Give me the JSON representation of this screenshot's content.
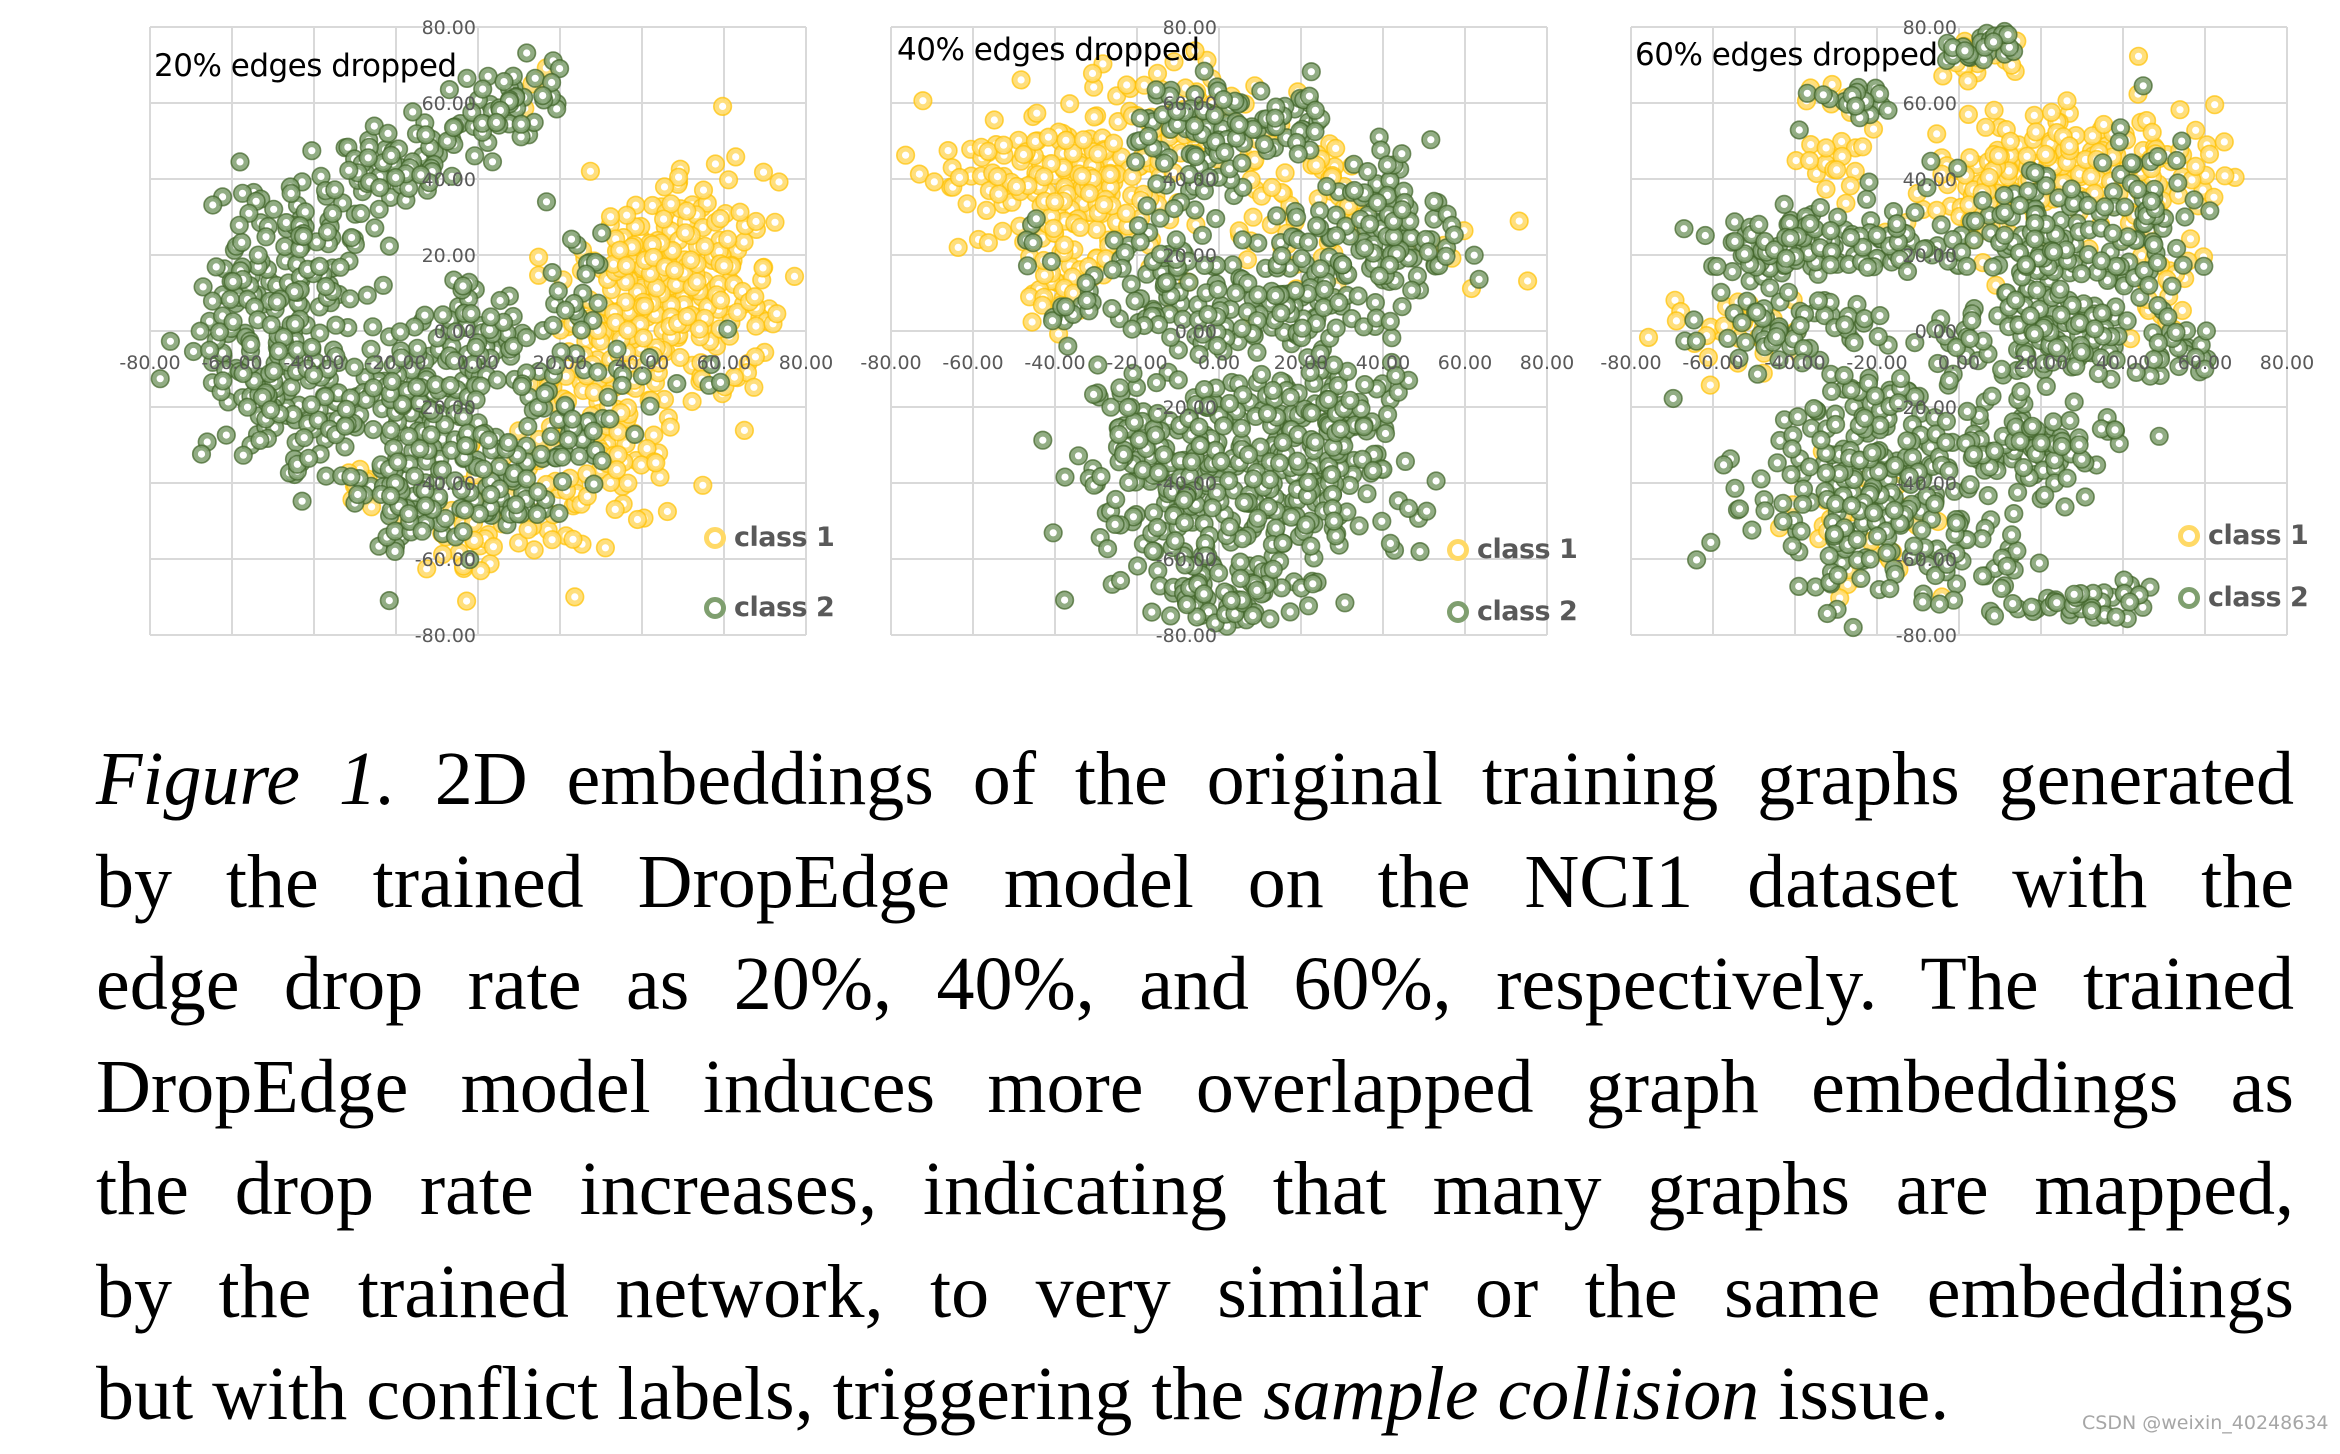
{
  "chart_data": [
    {
      "type": "scatter",
      "title": "20% edges dropped",
      "xlabel": "",
      "ylabel": "",
      "xlim": [
        -80,
        80
      ],
      "ylim": [
        -80,
        80
      ],
      "x_ticks": [
        "-80.00",
        "-60.00",
        "-40.00",
        "-20.00",
        "0.00",
        "20.00",
        "40.00",
        "60.00",
        "80.00"
      ],
      "y_ticks": [
        "80.00",
        "60.00",
        "40.00",
        "20.00",
        "0.00",
        "-20.00",
        "-40.00",
        "-60.00",
        "-80.00"
      ],
      "grid": true,
      "legend_position": "lower right",
      "legend": [
        "class 1",
        "class 2"
      ],
      "series": [
        {
          "name": "class 1",
          "color": "#FFC000",
          "clusters": [
            {
              "cx": 48,
              "cy": 12,
              "sx": 13,
              "sy": 13,
              "n": 260
            },
            {
              "cx": 30,
              "cy": -20,
              "sx": 10,
              "sy": 14,
              "n": 120
            },
            {
              "cx": 15,
              "cy": -45,
              "sx": 8,
              "sy": 8,
              "n": 50
            },
            {
              "cx": -3,
              "cy": -58,
              "sx": 4,
              "sy": 5,
              "n": 18
            },
            {
              "cx": -25,
              "cy": -40,
              "sx": 4,
              "sy": 4,
              "n": 10
            },
            {
              "cx": 12,
              "cy": 63,
              "sx": 3,
              "sy": 3,
              "n": 4
            }
          ]
        },
        {
          "name": "class 2",
          "color": "#3F6326",
          "clusters": [
            {
              "cx": 10,
              "cy": 60,
              "sx": 8,
              "sy": 5,
              "n": 45,
              "rot": 35
            },
            {
              "cx": -20,
              "cy": 45,
              "sx": 12,
              "sy": 6,
              "n": 70,
              "rot": 30
            },
            {
              "cx": -45,
              "cy": 25,
              "sx": 9,
              "sy": 9,
              "n": 80
            },
            {
              "cx": -52,
              "cy": 0,
              "sx": 9,
              "sy": 10,
              "n": 100
            },
            {
              "cx": -40,
              "cy": -22,
              "sx": 12,
              "sy": 8,
              "n": 90
            },
            {
              "cx": -12,
              "cy": -18,
              "sx": 12,
              "sy": 12,
              "n": 150
            },
            {
              "cx": -18,
              "cy": -48,
              "sx": 7,
              "sy": 9,
              "n": 60
            },
            {
              "cx": 5,
              "cy": -40,
              "sx": 6,
              "sy": 8,
              "n": 45
            },
            {
              "cx": 20,
              "cy": -30,
              "sx": 8,
              "sy": 8,
              "n": 40
            },
            {
              "cx": 25,
              "cy": 10,
              "sx": 4,
              "sy": 12,
              "n": 25
            },
            {
              "cx": 0,
              "cy": 2,
              "sx": 10,
              "sy": 6,
              "n": 40
            },
            {
              "cx": 50,
              "cy": -10,
              "sx": 10,
              "sy": 6,
              "n": 12
            }
          ]
        }
      ]
    },
    {
      "type": "scatter",
      "title": "40% edges dropped",
      "xlabel": "",
      "ylabel": "",
      "xlim": [
        -80,
        80
      ],
      "ylim": [
        -80,
        80
      ],
      "x_ticks": [
        "-80.00",
        "-60.00",
        "-40.00",
        "-20.00",
        "0.00",
        "20.00",
        "40.00",
        "60.00",
        "80.00"
      ],
      "y_ticks": [
        "80.00",
        "60.00",
        "40.00",
        "20.00",
        "0.00",
        "-20.00",
        "-40.00",
        "-60.00",
        "-80.00"
      ],
      "grid": true,
      "legend_position": "lower right",
      "legend": [
        "class 1",
        "class 2"
      ],
      "series": [
        {
          "name": "class 1",
          "color": "#FFC000",
          "clusters": [
            {
              "cx": -35,
              "cy": 38,
              "sx": 14,
              "sy": 10,
              "n": 220
            },
            {
              "cx": -5,
              "cy": 55,
              "sx": 12,
              "sy": 8,
              "n": 80
            },
            {
              "cx": -40,
              "cy": 10,
              "sx": 6,
              "sy": 6,
              "n": 30
            },
            {
              "cx": 25,
              "cy": 40,
              "sx": 8,
              "sy": 6,
              "n": 25
            },
            {
              "cx": 20,
              "cy": 25,
              "sx": 20,
              "sy": 8,
              "n": 40
            }
          ]
        },
        {
          "name": "class 2",
          "color": "#3F6326",
          "clusters": [
            {
              "cx": -2,
              "cy": 52,
              "sx": 9,
              "sy": 8,
              "n": 90
            },
            {
              "cx": 20,
              "cy": 55,
              "sx": 5,
              "sy": 5,
              "n": 25
            },
            {
              "cx": 40,
              "cy": 25,
              "sx": 9,
              "sy": 10,
              "n": 120
            },
            {
              "cx": 18,
              "cy": 10,
              "sx": 10,
              "sy": 10,
              "n": 90
            },
            {
              "cx": -12,
              "cy": 12,
              "sx": 8,
              "sy": 9,
              "n": 70
            },
            {
              "cx": 2,
              "cy": -40,
              "sx": 15,
              "sy": 18,
              "n": 320
            },
            {
              "cx": 28,
              "cy": -30,
              "sx": 9,
              "sy": 12,
              "n": 110
            },
            {
              "cx": -22,
              "cy": -28,
              "sx": 7,
              "sy": 6,
              "n": 40
            },
            {
              "cx": 0,
              "cy": -70,
              "sx": 8,
              "sy": 6,
              "n": 50
            },
            {
              "cx": -35,
              "cy": 5,
              "sx": 4,
              "sy": 4,
              "n": 12
            },
            {
              "cx": -45,
              "cy": 25,
              "sx": 4,
              "sy": 4,
              "n": 6
            }
          ]
        }
      ]
    },
    {
      "type": "scatter",
      "title": "60% edges dropped",
      "xlabel": "",
      "ylabel": "",
      "xlim": [
        -80,
        80
      ],
      "ylim": [
        -80,
        80
      ],
      "x_ticks": [
        "-80.00",
        "-60.00",
        "-40.00",
        "-20.00",
        "0.00",
        "20.00",
        "40.00",
        "60.00",
        "80.00"
      ],
      "y_ticks": [
        "80.00",
        "60.00",
        "40.00",
        "20.00",
        "0.00",
        "-20.00",
        "-40.00",
        "-60.00",
        "-80.00"
      ],
      "grid": true,
      "legend_position": "lower right",
      "legend": [
        "class 1",
        "class 2"
      ],
      "series": [
        {
          "name": "class 1",
          "color": "#FFC000",
          "clusters": [
            {
              "cx": 30,
              "cy": 42,
              "sx": 16,
              "sy": 8,
              "n": 180
            },
            {
              "cx": 5,
              "cy": 35,
              "sx": 5,
              "sy": 8,
              "n": 40
            },
            {
              "cx": -30,
              "cy": 48,
              "sx": 6,
              "sy": 8,
              "n": 30
            },
            {
              "cx": -55,
              "cy": 0,
              "sx": 8,
              "sy": 6,
              "n": 30
            },
            {
              "cx": 7,
              "cy": 73,
              "sx": 6,
              "sy": 4,
              "n": 20
            },
            {
              "cx": -25,
              "cy": -50,
              "sx": 8,
              "sy": 10,
              "n": 40
            },
            {
              "cx": 50,
              "cy": 15,
              "sx": 5,
              "sy": 10,
              "n": 25
            }
          ]
        },
        {
          "name": "class 2",
          "color": "#3F6326",
          "clusters": [
            {
              "cx": 5,
              "cy": 76,
              "sx": 6,
              "sy": 3,
              "n": 35
            },
            {
              "cx": -25,
              "cy": 60,
              "sx": 6,
              "sy": 3,
              "n": 20
            },
            {
              "cx": -40,
              "cy": 22,
              "sx": 10,
              "sy": 6,
              "n": 90
            },
            {
              "cx": -15,
              "cy": 25,
              "sx": 8,
              "sy": 6,
              "n": 40
            },
            {
              "cx": 20,
              "cy": 25,
              "sx": 12,
              "sy": 10,
              "n": 120
            },
            {
              "cx": 45,
              "cy": 25,
              "sx": 6,
              "sy": 14,
              "n": 50
            },
            {
              "cx": -45,
              "cy": 2,
              "sx": 12,
              "sy": 5,
              "n": 50
            },
            {
              "cx": 25,
              "cy": 0,
              "sx": 12,
              "sy": 8,
              "n": 100
            },
            {
              "cx": 55,
              "cy": -5,
              "sx": 5,
              "sy": 4,
              "n": 20
            },
            {
              "cx": -20,
              "cy": -40,
              "sx": 14,
              "sy": 16,
              "n": 280
            },
            {
              "cx": 20,
              "cy": -30,
              "sx": 10,
              "sy": 6,
              "n": 80
            },
            {
              "cx": 10,
              "cy": -60,
              "sx": 4,
              "sy": 6,
              "n": 20
            },
            {
              "cx": 30,
              "cy": -72,
              "sx": 7,
              "sy": 2,
              "n": 30
            },
            {
              "cx": 40,
              "cy": -68,
              "sx": 2,
              "sy": 3,
              "n": 8
            }
          ]
        }
      ]
    }
  ],
  "plots": [
    {
      "title": "20% edges dropped",
      "legend": {
        "class1": "class 1",
        "class2": "class 2"
      }
    },
    {
      "title": "40% edges dropped",
      "legend": {
        "class1": "class 1",
        "class2": "class 2"
      }
    },
    {
      "title": "60% edges dropped",
      "legend": {
        "class1": "class 1",
        "class2": "class 2"
      }
    }
  ],
  "colors": {
    "class1_stroke": "#FFC000",
    "class1_fill": "#FFD966",
    "class2_stroke": "#3F6326",
    "class2_fill": "#7F9F6F",
    "grid": "#D9D9D9",
    "tick_text": "#595959"
  },
  "caption": {
    "lines": [
      {
        "italic_prefix": "Figure 1.",
        "text": " 2D embeddings of the original training graphs generated"
      },
      {
        "text": "by the trained DropEdge model on the NCI1 dataset with the"
      },
      {
        "text": "edge drop rate as 20%, 40%, and 60%, respectively. The trained"
      },
      {
        "text": "DropEdge model induces more overlapped graph embeddings as"
      },
      {
        "text": "the drop rate increases, indicating that many graphs are mapped,"
      },
      {
        "text": "by the trained network, to very similar or the same embeddings"
      },
      {
        "text": "but with conflict labels, triggering the ",
        "italic_mid": "sample collision",
        "suffix": " issue."
      }
    ]
  },
  "watermark": "CSDN @weixin_40248634"
}
